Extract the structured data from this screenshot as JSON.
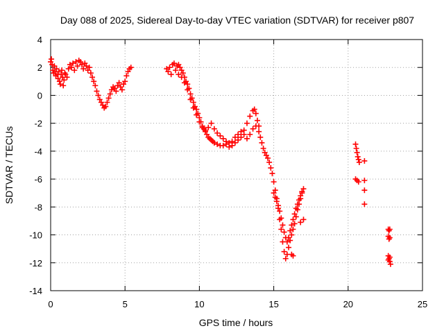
{
  "chart_data": {
    "type": "scatter",
    "title": "Day 088 of 2025, Sidereal Day-to-day VTEC variation (SDTVAR) for receiver p807",
    "xlabel": "GPS time / hours",
    "ylabel": "SDTVAR / TECUs",
    "xlim": [
      0,
      25
    ],
    "ylim": [
      -14,
      4
    ],
    "xticks": [
      0,
      5,
      10,
      15,
      20,
      25
    ],
    "yticks": [
      -14,
      -12,
      -10,
      -8,
      -6,
      -4,
      -2,
      0,
      2,
      4
    ],
    "grid": true,
    "marker": "+",
    "series_color": "#ff0000",
    "series": [
      {
        "name": "SDTVAR",
        "points": [
          [
            0.0,
            2.4
          ],
          [
            0.05,
            2.6
          ],
          [
            0.1,
            2.2
          ],
          [
            0.15,
            1.8
          ],
          [
            0.2,
            1.6
          ],
          [
            0.25,
            2.1
          ],
          [
            0.3,
            1.7
          ],
          [
            0.35,
            1.4
          ],
          [
            0.4,
            1.9
          ],
          [
            0.45,
            1.5
          ],
          [
            0.5,
            1.2
          ],
          [
            0.55,
            1.7
          ],
          [
            0.6,
            1.0
          ],
          [
            0.65,
            0.8
          ],
          [
            0.7,
            1.5
          ],
          [
            0.75,
            1.8
          ],
          [
            0.8,
            1.3
          ],
          [
            0.85,
            0.7
          ],
          [
            0.9,
            1.1
          ],
          [
            0.95,
            1.6
          ],
          [
            1.0,
            1.5
          ],
          [
            1.1,
            1.3
          ],
          [
            1.2,
            1.9
          ],
          [
            1.3,
            2.2
          ],
          [
            1.4,
            2.0
          ],
          [
            1.5,
            2.3
          ],
          [
            1.6,
            1.8
          ],
          [
            1.7,
            2.4
          ],
          [
            1.8,
            2.1
          ],
          [
            1.9,
            2.5
          ],
          [
            2.0,
            2.4
          ],
          [
            2.1,
            2.2
          ],
          [
            2.2,
            1.9
          ],
          [
            2.3,
            2.3
          ],
          [
            2.4,
            2.1
          ],
          [
            2.5,
            1.8
          ],
          [
            2.6,
            2.0
          ],
          [
            2.7,
            1.6
          ],
          [
            2.8,
            1.3
          ],
          [
            2.9,
            1.0
          ],
          [
            3.0,
            0.7
          ],
          [
            3.1,
            0.3
          ],
          [
            3.2,
            0.0
          ],
          [
            3.3,
            -0.3
          ],
          [
            3.4,
            -0.5
          ],
          [
            3.5,
            -0.7
          ],
          [
            3.6,
            -0.9
          ],
          [
            3.7,
            -0.8
          ],
          [
            3.8,
            -0.5
          ],
          [
            3.9,
            -0.2
          ],
          [
            4.0,
            0.1
          ],
          [
            4.1,
            0.4
          ],
          [
            4.2,
            0.6
          ],
          [
            4.3,
            0.5
          ],
          [
            4.4,
            0.3
          ],
          [
            4.5,
            0.7
          ],
          [
            4.6,
            0.9
          ],
          [
            4.7,
            0.6
          ],
          [
            4.8,
            0.4
          ],
          [
            4.9,
            0.8
          ],
          [
            5.0,
            1.0
          ],
          [
            5.1,
            1.4
          ],
          [
            5.2,
            1.7
          ],
          [
            5.3,
            1.9
          ],
          [
            5.4,
            2.0
          ],
          [
            7.8,
            1.9
          ],
          [
            7.9,
            1.7
          ],
          [
            8.0,
            2.0
          ],
          [
            8.1,
            1.5
          ],
          [
            8.2,
            2.2
          ],
          [
            8.3,
            2.3
          ],
          [
            8.4,
            1.8
          ],
          [
            8.5,
            2.1
          ],
          [
            8.6,
            2.2
          ],
          [
            8.7,
            2.0
          ],
          [
            8.8,
            1.8
          ],
          [
            8.9,
            1.6
          ],
          [
            9.0,
            1.3
          ],
          [
            9.1,
            1.0
          ],
          [
            9.2,
            0.8
          ],
          [
            9.3,
            0.5
          ],
          [
            9.4,
            0.1
          ],
          [
            9.5,
            -0.2
          ],
          [
            9.6,
            -0.5
          ],
          [
            9.7,
            -0.8
          ],
          [
            9.8,
            -1.0
          ],
          [
            9.9,
            -1.3
          ],
          [
            10.0,
            -1.6
          ],
          [
            10.1,
            -1.9
          ],
          [
            10.2,
            -2.2
          ],
          [
            10.3,
            -2.4
          ],
          [
            10.4,
            -2.6
          ],
          [
            10.5,
            -2.8
          ],
          [
            10.6,
            -3.0
          ],
          [
            10.7,
            -3.1
          ],
          [
            10.8,
            -3.2
          ],
          [
            10.9,
            -3.3
          ],
          [
            11.0,
            -3.4
          ],
          [
            11.2,
            -3.5
          ],
          [
            11.4,
            -3.6
          ],
          [
            11.6,
            -3.6
          ],
          [
            11.8,
            -3.5
          ],
          [
            12.0,
            -3.7
          ],
          [
            12.2,
            -3.6
          ],
          [
            12.4,
            -3.4
          ],
          [
            12.6,
            -3.2
          ],
          [
            12.8,
            -3.0
          ],
          [
            13.0,
            -2.5
          ],
          [
            13.2,
            -2.0
          ],
          [
            13.4,
            -1.5
          ],
          [
            13.6,
            -1.1
          ],
          [
            13.7,
            -1.0
          ],
          [
            13.8,
            -1.3
          ],
          [
            13.9,
            -1.8
          ],
          [
            14.0,
            -2.2
          ],
          [
            8.6,
            1.5
          ],
          [
            8.8,
            1.3
          ],
          [
            9.0,
            0.9
          ],
          [
            9.2,
            0.4
          ],
          [
            9.4,
            -0.3
          ],
          [
            9.6,
            -0.9
          ],
          [
            9.8,
            -1.4
          ],
          [
            10.0,
            -1.9
          ],
          [
            10.2,
            -2.3
          ],
          [
            10.4,
            -2.5
          ],
          [
            10.6,
            -2.3
          ],
          [
            10.8,
            -2.0
          ],
          [
            11.0,
            -2.4
          ],
          [
            11.2,
            -2.7
          ],
          [
            11.4,
            -2.9
          ],
          [
            11.6,
            -3.1
          ],
          [
            11.8,
            -3.3
          ],
          [
            12.0,
            -3.4
          ],
          [
            12.2,
            -3.3
          ],
          [
            12.4,
            -3.0
          ],
          [
            12.6,
            -2.8
          ],
          [
            12.8,
            -2.6
          ],
          [
            13.0,
            -2.8
          ],
          [
            13.2,
            -3.1
          ],
          [
            13.4,
            -2.8
          ],
          [
            13.6,
            -2.4
          ],
          [
            13.8,
            -2.2
          ],
          [
            14.0,
            -2.6
          ],
          [
            14.1,
            -3.0
          ],
          [
            14.2,
            -3.4
          ],
          [
            14.3,
            -3.8
          ],
          [
            14.4,
            -4.1
          ],
          [
            14.5,
            -4.3
          ],
          [
            14.6,
            -4.5
          ],
          [
            14.7,
            -4.8
          ],
          [
            14.8,
            -5.2
          ],
          [
            14.9,
            -5.6
          ],
          [
            15.0,
            -6.2
          ],
          [
            15.1,
            -6.8
          ],
          [
            15.2,
            -7.4
          ],
          [
            15.3,
            -8.1
          ],
          [
            15.4,
            -8.9
          ],
          [
            15.5,
            -9.6
          ],
          [
            15.6,
            -10.5
          ],
          [
            15.7,
            -11.2
          ],
          [
            15.8,
            -11.7
          ],
          [
            15.9,
            -11.4
          ],
          [
            16.0,
            -10.9
          ],
          [
            16.1,
            -10.4
          ],
          [
            16.2,
            -10.0
          ],
          [
            16.3,
            -9.6
          ],
          [
            16.4,
            -9.2
          ],
          [
            16.5,
            -8.7
          ],
          [
            16.6,
            -8.2
          ],
          [
            16.7,
            -7.8
          ],
          [
            16.8,
            -7.4
          ],
          [
            16.9,
            -7.0
          ],
          [
            17.0,
            -6.7
          ],
          [
            15.0,
            -7.0
          ],
          [
            15.1,
            -7.3
          ],
          [
            15.2,
            -7.6
          ],
          [
            15.3,
            -7.9
          ],
          [
            15.4,
            -8.3
          ],
          [
            15.5,
            -8.8
          ],
          [
            15.6,
            -9.3
          ],
          [
            15.7,
            -9.8
          ],
          [
            15.8,
            -10.2
          ],
          [
            15.9,
            -10.5
          ],
          [
            16.0,
            -10.2
          ],
          [
            16.1,
            -9.7
          ],
          [
            16.2,
            -9.3
          ],
          [
            16.3,
            -8.9
          ],
          [
            16.4,
            -8.5
          ],
          [
            16.5,
            -8.1
          ],
          [
            16.6,
            -7.8
          ],
          [
            16.7,
            -7.5
          ],
          [
            16.8,
            -7.2
          ],
          [
            16.9,
            -6.9
          ],
          [
            16.2,
            -11.4
          ],
          [
            16.3,
            -11.5
          ],
          [
            16.8,
            -9.1
          ],
          [
            17.0,
            -8.9
          ],
          [
            20.5,
            -3.5
          ],
          [
            20.55,
            -3.8
          ],
          [
            20.6,
            -4.1
          ],
          [
            20.65,
            -4.4
          ],
          [
            20.7,
            -4.6
          ],
          [
            20.75,
            -4.8
          ],
          [
            20.5,
            -6.0
          ],
          [
            20.6,
            -6.1
          ],
          [
            20.7,
            -6.2
          ],
          [
            21.1,
            -4.7
          ],
          [
            21.1,
            -6.1
          ],
          [
            21.1,
            -6.8
          ],
          [
            21.1,
            -7.8
          ],
          [
            22.7,
            -9.6
          ],
          [
            22.75,
            -9.7
          ],
          [
            22.8,
            -9.6
          ],
          [
            22.7,
            -10.1
          ],
          [
            22.75,
            -10.3
          ],
          [
            22.8,
            -10.2
          ],
          [
            22.7,
            -11.5
          ],
          [
            22.75,
            -11.7
          ],
          [
            22.8,
            -11.9
          ],
          [
            22.85,
            -12.1
          ],
          [
            22.7,
            -11.8
          ],
          [
            22.8,
            -11.6
          ]
        ]
      }
    ]
  }
}
